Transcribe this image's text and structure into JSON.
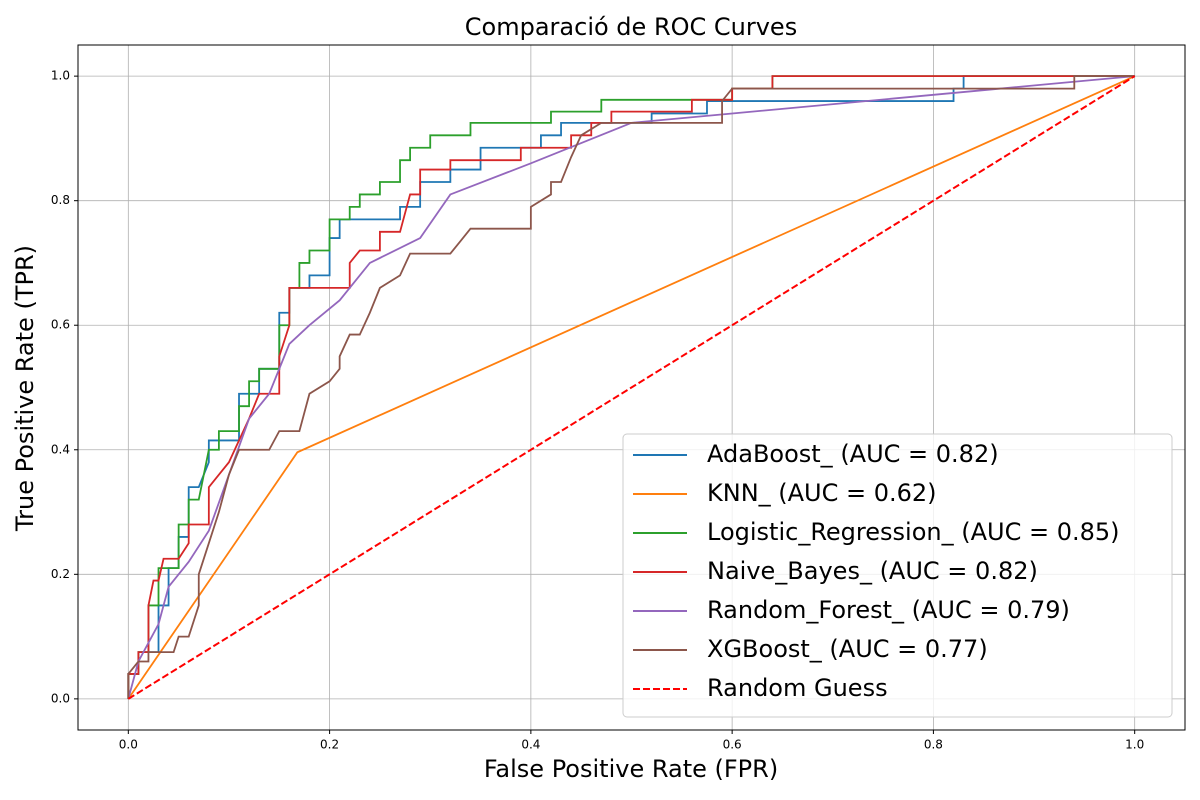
{
  "chart_data": {
    "type": "line",
    "title": "Comparació de ROC Curves",
    "x_label": "False Positive Rate (FPR)",
    "y_label": "True Positive Rate (TPR)",
    "xlim": [
      -0.05,
      1.05
    ],
    "ylim": [
      -0.05,
      1.05
    ],
    "xticks": [
      {
        "value": 0,
        "label": "0.0"
      },
      0.2,
      0.4,
      0.6,
      0.8,
      {
        "value": 1,
        "label": "1.0"
      }
    ],
    "yticks": [
      {
        "value": 0,
        "label": "0.0"
      },
      0.2,
      0.4,
      0.6,
      0.8,
      {
        "value": 1,
        "label": "1.0"
      }
    ],
    "grid": true,
    "legend": "lower right",
    "series": [
      {
        "name": "AdaBoost_ (AUC = 0.82)",
        "color": "#1f77b4",
        "linestyle": "solid",
        "x": [
          0,
          0,
          0.01,
          0.01,
          0.03,
          0.03,
          0.04,
          0.04,
          0.05,
          0.05,
          0.06,
          0.06,
          0.07,
          0.08,
          0.08,
          0.11,
          0.11,
          0.13,
          0.13,
          0.15,
          0.15,
          0.16,
          0.16,
          0.18,
          0.18,
          0.2,
          0.2,
          0.21,
          0.21,
          0.27,
          0.27,
          0.29,
          0.29,
          0.32,
          0.32,
          0.35,
          0.35,
          0.41,
          0.41,
          0.43,
          0.43,
          0.52,
          0.52,
          0.575,
          0.575,
          0.82,
          0.82,
          0.83,
          0.83,
          1
        ],
        "values": [
          0,
          0.04,
          0.04,
          0.075,
          0.075,
          0.15,
          0.15,
          0.21,
          0.21,
          0.26,
          0.26,
          0.34,
          0.34,
          0.38,
          0.415,
          0.415,
          0.49,
          0.49,
          0.53,
          0.53,
          0.62,
          0.62,
          0.66,
          0.66,
          0.68,
          0.68,
          0.74,
          0.74,
          0.77,
          0.77,
          0.79,
          0.79,
          0.83,
          0.83,
          0.85,
          0.85,
          0.885,
          0.885,
          0.905,
          0.905,
          0.925,
          0.925,
          0.94,
          0.94,
          0.96,
          0.96,
          0.98,
          0.98,
          1,
          1
        ]
      },
      {
        "name": "KNN_ (AUC = 0.62)",
        "color": "#ff7f0e",
        "linestyle": "solid",
        "x": [
          0,
          0.168,
          1
        ],
        "values": [
          0,
          0.396,
          1
        ]
      },
      {
        "name": "Logistic_Regression_ (AUC = 0.85)",
        "color": "#2ca02c",
        "linestyle": "solid",
        "x": [
          0,
          0,
          0.01,
          0.01,
          0.02,
          0.02,
          0.03,
          0.03,
          0.05,
          0.05,
          0.06,
          0.06,
          0.07,
          0.08,
          0.09,
          0.09,
          0.11,
          0.11,
          0.12,
          0.12,
          0.13,
          0.13,
          0.15,
          0.15,
          0.16,
          0.16,
          0.17,
          0.17,
          0.18,
          0.18,
          0.2,
          0.2,
          0.22,
          0.22,
          0.23,
          0.23,
          0.25,
          0.25,
          0.27,
          0.27,
          0.28,
          0.28,
          0.3,
          0.3,
          0.34,
          0.34,
          0.42,
          0.42,
          0.47,
          0.47,
          0.6,
          0.6,
          0.64,
          0.64,
          1
        ],
        "values": [
          0,
          0.04,
          0.04,
          0.075,
          0.075,
          0.15,
          0.15,
          0.21,
          0.21,
          0.28,
          0.28,
          0.32,
          0.32,
          0.4,
          0.4,
          0.43,
          0.43,
          0.47,
          0.47,
          0.51,
          0.51,
          0.53,
          0.53,
          0.6,
          0.6,
          0.66,
          0.66,
          0.7,
          0.7,
          0.72,
          0.72,
          0.77,
          0.77,
          0.79,
          0.79,
          0.81,
          0.81,
          0.83,
          0.83,
          0.865,
          0.865,
          0.885,
          0.885,
          0.905,
          0.905,
          0.925,
          0.925,
          0.943,
          0.943,
          0.962,
          0.962,
          0.98,
          0.98,
          1,
          1
        ]
      },
      {
        "name": "Naive_Bayes_ (AUC = 0.82)",
        "color": "#d62728",
        "linestyle": "solid",
        "x": [
          0,
          0,
          0.01,
          0.01,
          0.02,
          0.02,
          0.025,
          0.03,
          0.035,
          0.05,
          0.06,
          0.06,
          0.08,
          0.08,
          0.09,
          0.1,
          0.12,
          0.13,
          0.15,
          0.15,
          0.16,
          0.16,
          0.22,
          0.22,
          0.23,
          0.25,
          0.25,
          0.27,
          0.28,
          0.29,
          0.29,
          0.32,
          0.32,
          0.39,
          0.39,
          0.44,
          0.44,
          0.46,
          0.46,
          0.48,
          0.48,
          0.56,
          0.56,
          0.6,
          0.6,
          0.64,
          0.64,
          1
        ],
        "values": [
          0,
          0.04,
          0.04,
          0.075,
          0.075,
          0.15,
          0.19,
          0.19,
          0.225,
          0.225,
          0.25,
          0.28,
          0.28,
          0.34,
          0.36,
          0.38,
          0.45,
          0.49,
          0.49,
          0.55,
          0.6,
          0.66,
          0.66,
          0.7,
          0.72,
          0.72,
          0.75,
          0.75,
          0.81,
          0.81,
          0.85,
          0.85,
          0.865,
          0.865,
          0.885,
          0.885,
          0.905,
          0.905,
          0.925,
          0.925,
          0.943,
          0.943,
          0.962,
          0.962,
          0.98,
          0.98,
          1,
          1
        ]
      },
      {
        "name": "Random_Forest_ (AUC = 0.79)",
        "color": "#9467bd",
        "linestyle": "solid",
        "x": [
          0,
          0.01,
          0.03,
          0.04,
          0.06,
          0.08,
          0.1,
          0.12,
          0.14,
          0.16,
          0.18,
          0.21,
          0.24,
          0.29,
          0.32,
          0.4,
          0.5,
          0.6,
          0.8,
          1
        ],
        "values": [
          0,
          0.06,
          0.12,
          0.18,
          0.22,
          0.27,
          0.36,
          0.45,
          0.49,
          0.57,
          0.6,
          0.64,
          0.7,
          0.74,
          0.81,
          0.86,
          0.925,
          0.94,
          0.97,
          1
        ]
      },
      {
        "name": "XGBoost_ (AUC = 0.77)",
        "color": "#8c564b",
        "linestyle": "solid",
        "x": [
          0,
          0,
          0.01,
          0.02,
          0.02,
          0.045,
          0.05,
          0.06,
          0.07,
          0.07,
          0.08,
          0.09,
          0.1,
          0.11,
          0.14,
          0.15,
          0.17,
          0.18,
          0.2,
          0.21,
          0.21,
          0.22,
          0.23,
          0.24,
          0.25,
          0.27,
          0.28,
          0.32,
          0.33,
          0.34,
          0.4,
          0.4,
          0.42,
          0.42,
          0.43,
          0.44,
          0.45,
          0.47,
          0.59,
          0.59,
          0.6,
          0.94,
          0.94,
          1
        ],
        "values": [
          0,
          0.04,
          0.06,
          0.06,
          0.075,
          0.075,
          0.1,
          0.1,
          0.15,
          0.2,
          0.25,
          0.3,
          0.36,
          0.4,
          0.4,
          0.43,
          0.43,
          0.49,
          0.51,
          0.53,
          0.55,
          0.585,
          0.585,
          0.62,
          0.66,
          0.68,
          0.715,
          0.715,
          0.735,
          0.755,
          0.755,
          0.79,
          0.81,
          0.83,
          0.83,
          0.87,
          0.905,
          0.925,
          0.925,
          0.96,
          0.98,
          0.98,
          1,
          1
        ]
      },
      {
        "name": "Random Guess",
        "color": "#ff0000",
        "linestyle": "dashed",
        "x": [
          0,
          1
        ],
        "values": [
          0,
          1
        ]
      }
    ]
  }
}
